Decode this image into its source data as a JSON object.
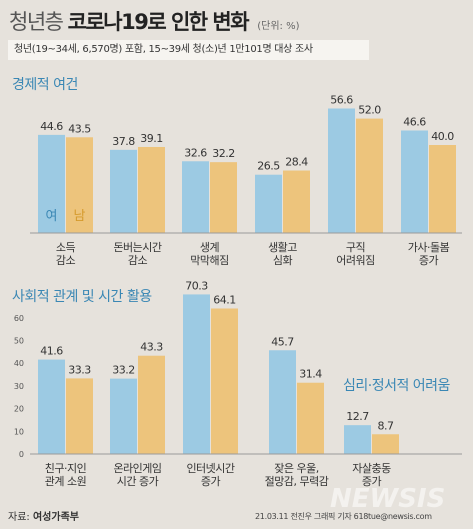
{
  "header": {
    "title_light": "청년층",
    "title_bold": "코로나19로 인한 변화",
    "unit": "(단위: %)",
    "subtitle": "청년(19~34세, 6,570명) 포함, 15~39세 청(소)년 1만101명 대상 조사"
  },
  "colors": {
    "female": "#9ccae3",
    "male": "#edc47c"
  },
  "sections": {
    "economic": "경제적 여건",
    "social": "사회적 관계 및 시간 활용",
    "psych": "심리·정서적 어려움"
  },
  "legend": {
    "female": "여",
    "male": "남"
  },
  "footer": {
    "source_label": "자료:",
    "source": "여성가족부",
    "credit": "21.03.11  전진우 그래픽 기자  618tue@newsis.com",
    "watermark": "NEWSIS"
  },
  "chart_data": [
    {
      "type": "bar",
      "title": "경제적 여건",
      "categories": [
        "소득\n감소",
        "돈버는시간\n감소",
        "생계\n막막해짐",
        "생활고\n심화",
        "구직\n어려워짐",
        "가사·돌봄\n증가"
      ],
      "series": [
        {
          "name": "여",
          "values": [
            44.6,
            37.8,
            32.6,
            26.5,
            56.6,
            46.6
          ]
        },
        {
          "name": "남",
          "values": [
            43.5,
            39.1,
            32.2,
            28.4,
            52.0,
            40.0
          ]
        }
      ],
      "value_labels": {
        "여": [
          "44.6",
          "37.8",
          "32.6",
          "26.5",
          "56.6",
          "46.6"
        ],
        "남": [
          "43.5",
          "39.1",
          "32.2",
          "28.4",
          "52.0",
          "40.0"
        ]
      }
    },
    {
      "type": "bar",
      "title": "사회적 관계 및 시간 활용 / 심리·정서적 어려움",
      "categories": [
        "친구·지인\n관계 소원",
        "온라인게임\n시간 증가",
        "인터넷시간\n증가",
        "잦은 우울,\n절망감, 무력감",
        "자살충동\n증가"
      ],
      "series": [
        {
          "name": "여",
          "values": [
            41.6,
            33.2,
            70.3,
            45.7,
            12.7
          ]
        },
        {
          "name": "남",
          "values": [
            33.3,
            43.3,
            64.1,
            31.4,
            8.7
          ]
        }
      ],
      "value_labels": {
        "여": [
          "41.6",
          "33.2",
          "70.3",
          "45.7",
          "12.7"
        ],
        "남": [
          "33.3",
          "43.3",
          "64.1",
          "31.4",
          "8.7"
        ]
      },
      "yticks": [
        0,
        10,
        20,
        30,
        40,
        50,
        60
      ],
      "ylim": [
        0,
        75
      ]
    }
  ]
}
